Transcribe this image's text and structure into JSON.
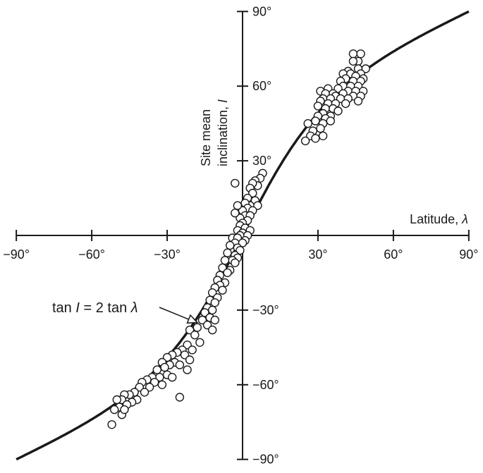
{
  "chart_data": {
    "type": "scatter",
    "xlabel": "Latitude, λ",
    "ylabel": "Site mean inclination, I",
    "ylabel_lines": [
      "Site mean",
      "inclination, "
    ],
    "ylabel_var": "I",
    "xlabel_text": "Latitude, ",
    "xlabel_var": "λ",
    "xlim": [
      -90,
      90
    ],
    "ylim": [
      -90,
      90
    ],
    "x_tick_values": [
      -90,
      -60,
      -30,
      30,
      60,
      90
    ],
    "x_tick_labels": [
      "−90°",
      "−60°",
      "−30°",
      "30°",
      "60°",
      "90°"
    ],
    "y_tick_values": [
      90,
      60,
      30,
      -30,
      -60,
      -90
    ],
    "y_tick_labels": [
      "90°",
      "60°",
      "30°",
      "−30°",
      "−60°",
      "−90°"
    ],
    "grid": false,
    "curve": {
      "equation": "tan I = 2 tan λ",
      "label_parts": [
        "tan ",
        "I",
        " = 2 tan ",
        "λ"
      ],
      "arrow_target": [
        -18,
        -35
      ]
    },
    "series": [
      {
        "marker": "open-circle",
        "points": [
          [
            44,
            73
          ],
          [
            47,
            73
          ],
          [
            46,
            70
          ],
          [
            44,
            70
          ],
          [
            49,
            67
          ],
          [
            46,
            67
          ],
          [
            42,
            66
          ],
          [
            40,
            65
          ],
          [
            43,
            65
          ],
          [
            47,
            65
          ],
          [
            45,
            64
          ],
          [
            41,
            63
          ],
          [
            48,
            63
          ],
          [
            39,
            62
          ],
          [
            44,
            62
          ],
          [
            47,
            62
          ],
          [
            40,
            60
          ],
          [
            43,
            60
          ],
          [
            46,
            60
          ],
          [
            38,
            59
          ],
          [
            42,
            58
          ],
          [
            45,
            58
          ],
          [
            48,
            58
          ],
          [
            34,
            59
          ],
          [
            31,
            58
          ],
          [
            36,
            57
          ],
          [
            33,
            57
          ],
          [
            40,
            57
          ],
          [
            37,
            56
          ],
          [
            44,
            56
          ],
          [
            47,
            56
          ],
          [
            32,
            55
          ],
          [
            35,
            55
          ],
          [
            39,
            55
          ],
          [
            42,
            55
          ],
          [
            46,
            54
          ],
          [
            31,
            54
          ],
          [
            34,
            53
          ],
          [
            37,
            53
          ],
          [
            41,
            53
          ],
          [
            30,
            52
          ],
          [
            33,
            51
          ],
          [
            36,
            51
          ],
          [
            38,
            50
          ],
          [
            32,
            49
          ],
          [
            35,
            48
          ],
          [
            30,
            48
          ],
          [
            33,
            47
          ],
          [
            29,
            46
          ],
          [
            32,
            45
          ],
          [
            31,
            43
          ],
          [
            28,
            42
          ],
          [
            27,
            40
          ],
          [
            25,
            38
          ],
          [
            32,
            40
          ],
          [
            29,
            39
          ],
          [
            26,
            45
          ],
          [
            35,
            46
          ],
          [
            8,
            25
          ],
          [
            7,
            23
          ],
          [
            5,
            22
          ],
          [
            6,
            20
          ],
          [
            4,
            21
          ],
          [
            3,
            19
          ],
          [
            4,
            17
          ],
          [
            2,
            15
          ],
          [
            5,
            14
          ],
          [
            3,
            12
          ],
          [
            1,
            13
          ],
          [
            6,
            12
          ],
          [
            2,
            11
          ],
          [
            4,
            10
          ],
          [
            0,
            10
          ],
          [
            1,
            8
          ],
          [
            3,
            8
          ],
          [
            -1,
            7
          ],
          [
            2,
            6
          ],
          [
            0,
            5
          ],
          [
            -3,
            21
          ],
          [
            -2,
            12
          ],
          [
            -3,
            9
          ],
          [
            -1,
            4
          ],
          [
            1,
            3
          ],
          [
            -2,
            2
          ],
          [
            3,
            2
          ],
          [
            0,
            1
          ],
          [
            -1,
            0
          ],
          [
            2,
            0
          ],
          [
            -4,
            -1
          ],
          [
            -2,
            -1
          ],
          [
            1,
            -2
          ],
          [
            -3,
            -3
          ],
          [
            0,
            -3
          ],
          [
            -5,
            -4
          ],
          [
            -2,
            -5
          ],
          [
            -1,
            -6
          ],
          [
            -6,
            -7
          ],
          [
            -3,
            -8
          ],
          [
            -2,
            -9
          ],
          [
            -4,
            -10
          ],
          [
            -7,
            -10
          ],
          [
            -3,
            -11
          ],
          [
            -8,
            -13
          ],
          [
            -5,
            -14
          ],
          [
            -6,
            -15
          ],
          [
            -9,
            -16
          ],
          [
            -10,
            -18
          ],
          [
            -7,
            -19
          ],
          [
            -9,
            -20
          ],
          [
            -11,
            -21
          ],
          [
            -8,
            -22
          ],
          [
            -12,
            -23
          ],
          [
            -10,
            -25
          ],
          [
            -13,
            -26
          ],
          [
            -11,
            -27
          ],
          [
            -14,
            -29
          ],
          [
            -12,
            -30
          ],
          [
            -15,
            -31
          ],
          [
            -13,
            -33
          ],
          [
            -11,
            -34
          ],
          [
            -16,
            -34
          ],
          [
            -14,
            -36
          ],
          [
            -12,
            -38
          ],
          [
            -18,
            -37
          ],
          [
            -21,
            -38
          ],
          [
            -19,
            -40
          ],
          [
            -17,
            -43
          ],
          [
            -22,
            -44
          ],
          [
            -20,
            -46
          ],
          [
            -24,
            -46
          ],
          [
            -26,
            -47
          ],
          [
            -23,
            -48
          ],
          [
            -28,
            -48
          ],
          [
            -30,
            -49
          ],
          [
            -27,
            -51
          ],
          [
            -25,
            -52
          ],
          [
            -29,
            -52
          ],
          [
            -21,
            -50
          ],
          [
            -32,
            -51
          ],
          [
            -31,
            -53
          ],
          [
            -34,
            -54
          ],
          [
            -30,
            -56
          ],
          [
            -33,
            -57
          ],
          [
            -36,
            -57
          ],
          [
            -38,
            -58
          ],
          [
            -35,
            -59
          ],
          [
            -40,
            -59
          ],
          [
            -32,
            -60
          ],
          [
            -37,
            -61
          ],
          [
            -41,
            -61
          ],
          [
            -43,
            -63
          ],
          [
            -39,
            -63
          ],
          [
            -45,
            -64
          ],
          [
            -47,
            -64
          ],
          [
            -42,
            -66
          ],
          [
            -48,
            -66
          ],
          [
            -44,
            -67
          ],
          [
            -50,
            -66
          ],
          [
            -46,
            -68
          ],
          [
            -49,
            -69
          ],
          [
            -51,
            -70
          ],
          [
            -48,
            -72
          ],
          [
            -47,
            -70
          ],
          [
            -52,
            -76
          ],
          [
            -25,
            -65
          ],
          [
            -28,
            -57
          ],
          [
            -22,
            -54
          ]
        ]
      }
    ]
  }
}
